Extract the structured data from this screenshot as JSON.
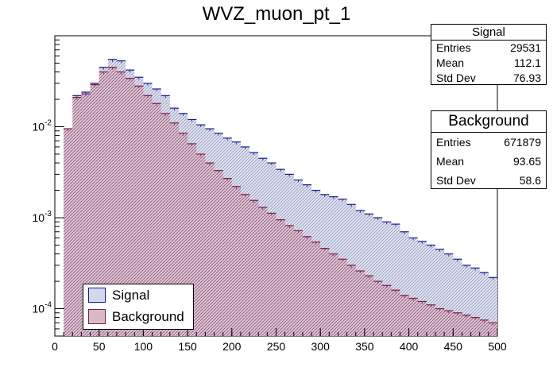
{
  "title": "WVZ_muon_pt_1",
  "colors": {
    "signal_line": "#1a1a8c",
    "signal_fill": "#d4d8ea",
    "background_line": "#7a1f4a",
    "background_fill": "#d9b8c8",
    "signal_hatch": "#5a5f9a",
    "background_hatch": "#8a4f78"
  },
  "stats_signal": {
    "title": "Signal",
    "rows": [
      {
        "label": "Entries",
        "value": "29531"
      },
      {
        "label": "Mean",
        "value": "112.1"
      },
      {
        "label": "Std Dev",
        "value": "76.93"
      }
    ]
  },
  "stats_background": {
    "title": "Background",
    "rows": [
      {
        "label": "Entries",
        "value": "671879"
      },
      {
        "label": "Mean",
        "value": "93.65"
      },
      {
        "label": "Std Dev",
        "value": "58.6"
      }
    ]
  },
  "legend": [
    {
      "label": "Signal",
      "series": "signal"
    },
    {
      "label": "Background",
      "series": "background"
    }
  ],
  "chart_data": {
    "type": "area",
    "title": "WVZ_muon_pt_1",
    "xlabel": "",
    "ylabel": "",
    "xlim": [
      0,
      500
    ],
    "ylim": [
      5e-05,
      0.1
    ],
    "y_scale": "log",
    "grid": false,
    "legend_position": "bottom-left",
    "x_ticks": [
      "0",
      "50",
      "100",
      "150",
      "200",
      "250",
      "300",
      "350",
      "400",
      "450",
      "500"
    ],
    "y_ticks": [
      {
        "value": 0.01,
        "label": "10^-2"
      },
      {
        "value": 0.001,
        "label": "10^-3"
      },
      {
        "value": 0.0001,
        "label": "10^-4"
      }
    ],
    "series": [
      {
        "name": "Signal",
        "x": [
          15,
          25,
          35,
          45,
          55,
          65,
          75,
          85,
          95,
          105,
          115,
          125,
          135,
          145,
          155,
          165,
          175,
          185,
          195,
          205,
          215,
          225,
          235,
          245,
          255,
          265,
          275,
          285,
          295,
          305,
          315,
          325,
          335,
          345,
          355,
          365,
          375,
          385,
          395,
          405,
          415,
          425,
          435,
          445,
          455,
          465,
          475,
          485,
          495
        ],
        "values": [
          0.0095,
          0.022,
          0.024,
          0.03,
          0.045,
          0.055,
          0.053,
          0.042,
          0.035,
          0.03,
          0.026,
          0.022,
          0.016,
          0.014,
          0.012,
          0.0105,
          0.0095,
          0.0085,
          0.0075,
          0.0068,
          0.006,
          0.0052,
          0.0045,
          0.004,
          0.0034,
          0.003,
          0.0026,
          0.0023,
          0.002,
          0.0018,
          0.0017,
          0.0016,
          0.0014,
          0.0012,
          0.0011,
          0.001,
          0.0009,
          0.00085,
          0.0007,
          0.0006,
          0.00055,
          0.0005,
          0.00045,
          0.0004,
          0.00035,
          0.0003,
          0.00028,
          0.00025,
          0.00022
        ]
      },
      {
        "name": "Background",
        "x": [
          15,
          25,
          35,
          45,
          55,
          65,
          75,
          85,
          95,
          105,
          115,
          125,
          135,
          145,
          155,
          165,
          175,
          185,
          195,
          205,
          215,
          225,
          235,
          245,
          255,
          265,
          275,
          285,
          295,
          305,
          315,
          325,
          335,
          345,
          355,
          365,
          375,
          385,
          395,
          405,
          415,
          425,
          435,
          445,
          455,
          465,
          475,
          485,
          495
        ],
        "values": [
          0.0095,
          0.021,
          0.023,
          0.029,
          0.04,
          0.045,
          0.04,
          0.034,
          0.028,
          0.022,
          0.018,
          0.014,
          0.011,
          0.0085,
          0.0065,
          0.005,
          0.004,
          0.0033,
          0.0027,
          0.0022,
          0.0018,
          0.00155,
          0.0013,
          0.00112,
          0.00095,
          0.00082,
          0.00072,
          0.00062,
          0.00054,
          0.00046,
          0.0004,
          0.00035,
          0.0003,
          0.00026,
          0.00023,
          0.0002,
          0.00018,
          0.00016,
          0.00014,
          0.00013,
          0.00012,
          0.00011,
          0.0001,
          9.5e-05,
          9e-05,
          8.5e-05,
          8e-05,
          7.5e-05,
          7e-05
        ]
      }
    ]
  }
}
